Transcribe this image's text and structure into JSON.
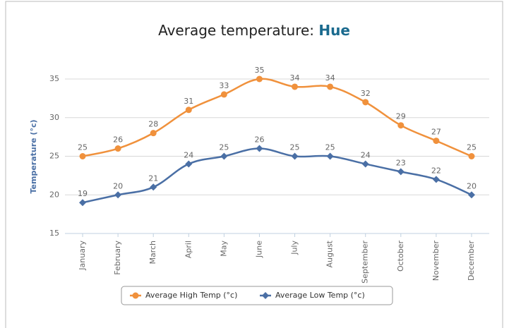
{
  "chart_data": {
    "type": "line",
    "title": "Average temperature:",
    "title_highlight": "Hue",
    "y_label": "Temperature (°c)",
    "categories": [
      "January",
      "February",
      "March",
      "April",
      "May",
      "June",
      "July",
      "August",
      "September",
      "October",
      "November",
      "December"
    ],
    "series": [
      {
        "name": "Average High Temp (°c)",
        "color": "#f0913c",
        "marker": "circle",
        "values": [
          25,
          26,
          28,
          31,
          33,
          35,
          34,
          34,
          32,
          29,
          27,
          25
        ]
      },
      {
        "name": "Average Low Temp (°c)",
        "color": "#4a6fa5",
        "marker": "diamond",
        "values": [
          19,
          20,
          21,
          24,
          25,
          26,
          25,
          25,
          24,
          23,
          22,
          20
        ]
      }
    ],
    "ylim": [
      15,
      35
    ],
    "yticks": [
      15,
      20,
      25,
      30,
      35
    ],
    "grid": true
  }
}
